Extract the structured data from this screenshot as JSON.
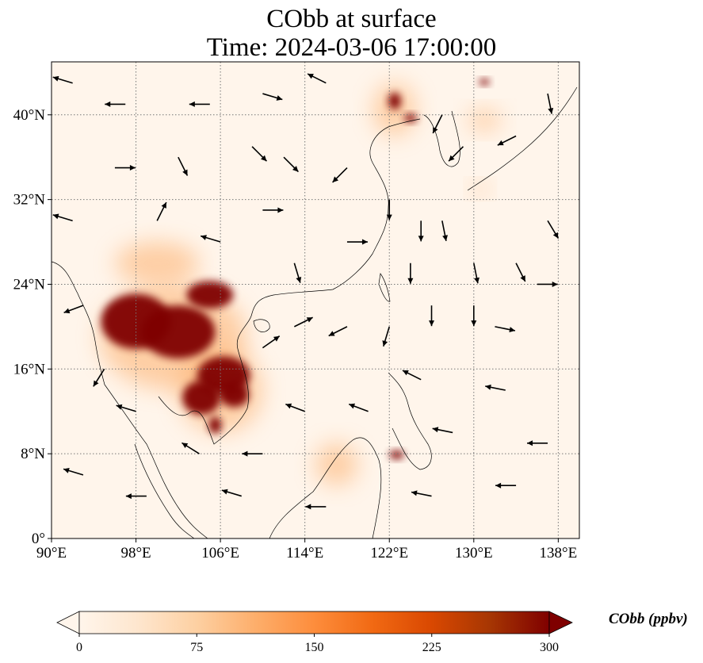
{
  "title": {
    "line1": "CObb at surface",
    "line2": "Time: 2024-03-06 17:00:00"
  },
  "map": {
    "lon_range": [
      90,
      140
    ],
    "lat_range": [
      0,
      45
    ],
    "lon_ticks": [
      {
        "value": 90,
        "label": "90°E"
      },
      {
        "value": 98,
        "label": "98°E"
      },
      {
        "value": 106,
        "label": "106°E"
      },
      {
        "value": 114,
        "label": "114°E"
      },
      {
        "value": 122,
        "label": "122°E"
      },
      {
        "value": 130,
        "label": "130°E"
      },
      {
        "value": 138,
        "label": "138°E"
      }
    ],
    "lat_ticks": [
      {
        "value": 0,
        "label": "0°"
      },
      {
        "value": 8,
        "label": "8°N"
      },
      {
        "value": 16,
        "label": "16°N"
      },
      {
        "value": 24,
        "label": "24°N"
      },
      {
        "value": 32,
        "label": "32°N"
      },
      {
        "value": 40,
        "label": "40°N"
      }
    ],
    "gridlines": true,
    "background_color": "#fff5eb",
    "high_regions": [
      {
        "lon": 98,
        "lat": 20.5,
        "rx": 3.3,
        "ry": 2.6
      },
      {
        "lon": 102,
        "lat": 19.5,
        "rx": 3.5,
        "ry": 2.5
      },
      {
        "lon": 105,
        "lat": 23,
        "rx": 2.2,
        "ry": 1.3
      },
      {
        "lon": 106.3,
        "lat": 15.4,
        "rx": 2.5,
        "ry": 1.8
      },
      {
        "lon": 104.2,
        "lat": 13.3,
        "rx": 1.8,
        "ry": 1.6
      },
      {
        "lon": 107.3,
        "lat": 13.6,
        "rx": 1.4,
        "ry": 1.2
      },
      {
        "lon": 105.5,
        "lat": 10.7,
        "rx": 0.6,
        "ry": 0.8
      },
      {
        "lon": 122.5,
        "lat": 41.3,
        "rx": 0.6,
        "ry": 0.8
      },
      {
        "lon": 124,
        "lat": 39.7,
        "rx": 0.6,
        "ry": 0.4
      },
      {
        "lon": 131,
        "lat": 43.1,
        "rx": 0.5,
        "ry": 0.3
      },
      {
        "lon": 122.7,
        "lat": 7.9,
        "rx": 0.7,
        "ry": 0.4
      }
    ],
    "moderate_regions": [
      {
        "lon": 101.5,
        "lat": 19,
        "rx": 7,
        "ry": 5
      },
      {
        "lon": 106,
        "lat": 14,
        "rx": 4,
        "ry": 4
      },
      {
        "lon": 100,
        "lat": 26,
        "rx": 4,
        "ry": 2
      },
      {
        "lon": 122.5,
        "lat": 40.5,
        "rx": 2,
        "ry": 2.5
      },
      {
        "lon": 131,
        "lat": 39.5,
        "rx": 1.5,
        "ry": 1
      },
      {
        "lon": 117,
        "lat": 7,
        "rx": 2,
        "ry": 2
      },
      {
        "lon": 130.6,
        "lat": 33,
        "rx": 0.8,
        "ry": 0.6
      }
    ],
    "wind_vectors": [
      {
        "lon": 92,
        "lat": 43,
        "u": -1,
        "v": 0.3
      },
      {
        "lon": 97,
        "lat": 41,
        "u": -1,
        "v": 0
      },
      {
        "lon": 105,
        "lat": 41,
        "u": -1,
        "v": 0
      },
      {
        "lon": 110,
        "lat": 42,
        "u": 1,
        "v": -0.3
      },
      {
        "lon": 116,
        "lat": 43,
        "u": -1,
        "v": 0.5
      },
      {
        "lon": 102,
        "lat": 36,
        "u": 0.5,
        "v": -1
      },
      {
        "lon": 109,
        "lat": 37,
        "u": 1,
        "v": -1
      },
      {
        "lon": 112,
        "lat": 36,
        "u": 1,
        "v": -1
      },
      {
        "lon": 118,
        "lat": 35,
        "u": -0.8,
        "v": -0.8
      },
      {
        "lon": 125,
        "lat": 30,
        "u": 0,
        "v": -1
      },
      {
        "lon": 127,
        "lat": 30,
        "u": 0.2,
        "v": -1
      },
      {
        "lon": 124,
        "lat": 26,
        "u": 0,
        "v": -1
      },
      {
        "lon": 126,
        "lat": 22,
        "u": 0,
        "v": -1
      },
      {
        "lon": 122,
        "lat": 20,
        "u": -0.3,
        "v": -1
      },
      {
        "lon": 118,
        "lat": 20,
        "u": -1,
        "v": -0.5
      },
      {
        "lon": 113,
        "lat": 20,
        "u": 1,
        "v": 0.5
      },
      {
        "lon": 110,
        "lat": 18,
        "u": 1,
        "v": 0.7
      },
      {
        "lon": 130,
        "lat": 22,
        "u": 0,
        "v": -1
      },
      {
        "lon": 134,
        "lat": 26,
        "u": 0.5,
        "v": -1
      },
      {
        "lon": 137,
        "lat": 30,
        "u": 0.6,
        "v": -1
      },
      {
        "lon": 136,
        "lat": 24,
        "u": 1,
        "v": 0
      },
      {
        "lon": 132,
        "lat": 20,
        "u": 1,
        "v": -0.2
      },
      {
        "lon": 125,
        "lat": 15,
        "u": -0.8,
        "v": 0.4
      },
      {
        "lon": 120,
        "lat": 12,
        "u": -0.8,
        "v": 0.3
      },
      {
        "lon": 114,
        "lat": 12,
        "u": -0.8,
        "v": 0.3
      },
      {
        "lon": 110,
        "lat": 8,
        "u": -1,
        "v": 0
      },
      {
        "lon": 98,
        "lat": 12,
        "u": -1,
        "v": 0.3
      },
      {
        "lon": 95,
        "lat": 16,
        "u": -0.5,
        "v": -0.8
      },
      {
        "lon": 93,
        "lat": 22,
        "u": -0.8,
        "v": -0.3
      },
      {
        "lon": 100,
        "lat": 30,
        "u": 0.5,
        "v": 1
      },
      {
        "lon": 106,
        "lat": 28,
        "u": -1,
        "v": 0.3
      },
      {
        "lon": 113,
        "lat": 26,
        "u": 0.3,
        "v": -1
      },
      {
        "lon": 118,
        "lat": 28,
        "u": 1,
        "v": 0
      },
      {
        "lon": 129,
        "lat": 37,
        "u": -1,
        "v": -1
      },
      {
        "lon": 134,
        "lat": 38,
        "u": -1,
        "v": -0.5
      },
      {
        "lon": 137,
        "lat": 42,
        "u": 0.2,
        "v": -1
      },
      {
        "lon": 128,
        "lat": 10,
        "u": -1,
        "v": 0.2
      },
      {
        "lon": 133,
        "lat": 14,
        "u": -1,
        "v": 0.2
      },
      {
        "lon": 137,
        "lat": 9,
        "u": -1,
        "v": 0
      },
      {
        "lon": 104,
        "lat": 8,
        "u": -0.8,
        "v": 0.5
      },
      {
        "lon": 93,
        "lat": 6,
        "u": -1,
        "v": 0.3
      },
      {
        "lon": 99,
        "lat": 4,
        "u": -1,
        "v": 0
      },
      {
        "lon": 108,
        "lat": 4,
        "u": -1,
        "v": 0.3
      },
      {
        "lon": 116,
        "lat": 3,
        "u": -1,
        "v": 0
      },
      {
        "lon": 126,
        "lat": 4,
        "u": -1,
        "v": 0.2
      },
      {
        "lon": 134,
        "lat": 5,
        "u": -1,
        "v": 0
      },
      {
        "lon": 92,
        "lat": 30,
        "u": -1,
        "v": 0.3
      },
      {
        "lon": 96,
        "lat": 35,
        "u": 1,
        "v": 0
      },
      {
        "lon": 110,
        "lat": 31,
        "u": 1,
        "v": 0
      },
      {
        "lon": 122,
        "lat": 32,
        "u": 0,
        "v": -1
      },
      {
        "lon": 130,
        "lat": 26,
        "u": 0.2,
        "v": -1
      },
      {
        "lon": 127,
        "lat": 40,
        "u": -0.5,
        "v": -1
      }
    ]
  },
  "colorbar": {
    "label": "CObb (ppbv)",
    "min": 0,
    "max": 300,
    "extend": "both",
    "ticks": [
      {
        "value": 0,
        "label": "0"
      },
      {
        "value": 75,
        "label": "75"
      },
      {
        "value": 150,
        "label": "150"
      },
      {
        "value": 225,
        "label": "225"
      },
      {
        "value": 300,
        "label": "300"
      }
    ],
    "colors": [
      "#fff5eb",
      "#fee6ce",
      "#fdd0a2",
      "#fdae6b",
      "#fd8d3c",
      "#f16913",
      "#d94801",
      "#a63603",
      "#7f0000"
    ]
  }
}
